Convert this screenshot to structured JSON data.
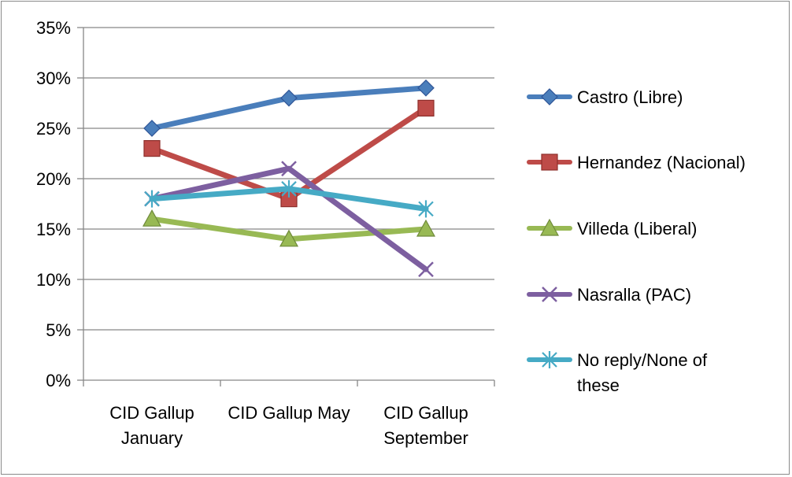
{
  "chart_data": {
    "type": "line",
    "categories": [
      [
        "CID Gallup",
        "January"
      ],
      [
        "CID Gallup May"
      ],
      [
        "CID Gallup",
        "September"
      ]
    ],
    "y_ticks": [
      "0%",
      "5%",
      "10%",
      "15%",
      "20%",
      "25%",
      "30%",
      "35%"
    ],
    "ylim": [
      0,
      35
    ],
    "grid": true,
    "legend_position": "right",
    "series": [
      {
        "name": "Castro (Libre)",
        "values": [
          25,
          28,
          29
        ],
        "color": "#4a7ebb",
        "marker": "diamond"
      },
      {
        "name": "Hernandez (Nacional)",
        "values": [
          23,
          18,
          27
        ],
        "color": "#be4b48",
        "marker": "square"
      },
      {
        "name": "Villeda (Liberal)",
        "values": [
          16,
          14,
          15
        ],
        "color": "#98b954",
        "marker": "triangle"
      },
      {
        "name": "Nasralla (PAC)",
        "values": [
          18,
          21,
          11
        ],
        "color": "#7d5fa0",
        "marker": "x"
      },
      {
        "name": "No reply/None of these",
        "name_lines": [
          "No reply/None of",
          "these"
        ],
        "values": [
          18,
          19,
          17
        ],
        "color": "#46aac5",
        "marker": "star"
      }
    ]
  }
}
